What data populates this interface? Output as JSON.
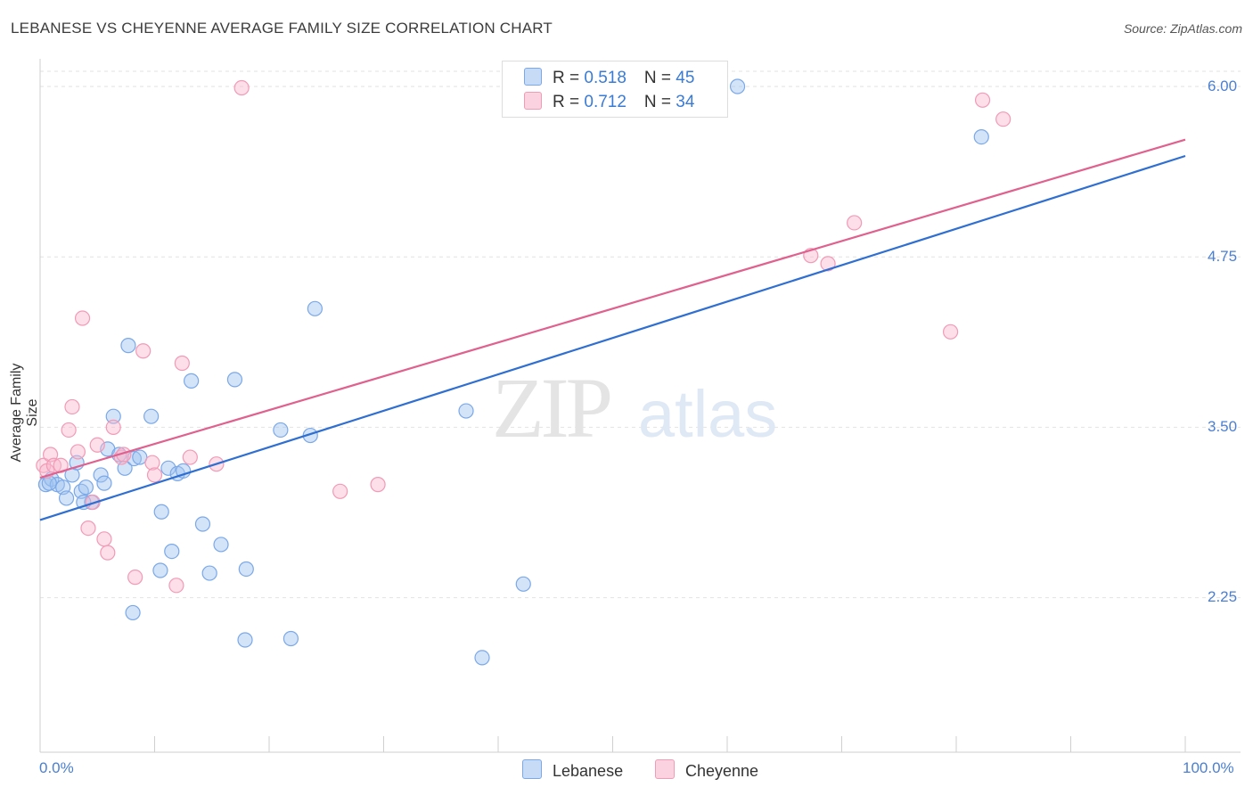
{
  "title": "LEBANESE VS CHEYENNE AVERAGE FAMILY SIZE CORRELATION CHART",
  "source": "Source: ZipAtlas.com",
  "watermark": {
    "zip": "ZIP",
    "atlas": "atlas"
  },
  "legend_top": [
    {
      "r_label": "R = ",
      "r_value": "0.518",
      "n_label": "N = ",
      "n_value": "45",
      "color": "#7aa8e8"
    },
    {
      "r_label": "R = ",
      "r_value": "0.712",
      "n_label": "N = ",
      "n_value": "34",
      "color": "#f29ab6"
    }
  ],
  "chart_data": {
    "type": "scatter",
    "title": "LEBANESE VS CHEYENNE AVERAGE FAMILY SIZE CORRELATION CHART",
    "xlabel": "",
    "ylabel": "Average Family Size",
    "x_tick_labels": [
      "0.0%",
      "100.0%"
    ],
    "y_tick_labels": [
      "2.25",
      "3.50",
      "4.75",
      "6.00"
    ],
    "xlim": [
      0,
      100
    ],
    "ylim": [
      1.25,
      6.15
    ],
    "y_ticks": [
      2.25,
      3.5,
      4.75,
      6.0
    ],
    "grid": true,
    "legend_position": "bottom-center",
    "series": [
      {
        "name": "Lebanese",
        "color": "#7aa8e8",
        "line_color": "#2f6fd1",
        "trend": {
          "x": [
            0,
            100
          ],
          "y": [
            2.82,
            5.49
          ]
        },
        "points": [
          [
            0.5,
            3.08
          ],
          [
            1.0,
            3.12
          ],
          [
            1.5,
            3.08
          ],
          [
            2.0,
            3.06
          ],
          [
            2.3,
            2.98
          ],
          [
            2.8,
            3.15
          ],
          [
            3.2,
            3.24
          ],
          [
            3.6,
            3.03
          ],
          [
            4.0,
            3.06
          ],
          [
            4.5,
            2.95
          ],
          [
            5.3,
            3.15
          ],
          [
            5.6,
            3.09
          ],
          [
            5.9,
            3.34
          ],
          [
            6.4,
            3.58
          ],
          [
            6.9,
            3.3
          ],
          [
            7.4,
            3.2
          ],
          [
            7.7,
            4.1
          ],
          [
            8.2,
            3.27
          ],
          [
            8.7,
            3.28
          ],
          [
            9.7,
            3.58
          ],
          [
            10.5,
            2.45
          ],
          [
            10.6,
            2.88
          ],
          [
            11.2,
            3.2
          ],
          [
            11.5,
            2.59
          ],
          [
            12.0,
            3.16
          ],
          [
            12.5,
            3.18
          ],
          [
            13.2,
            3.84
          ],
          [
            14.2,
            2.79
          ],
          [
            14.8,
            2.43
          ],
          [
            15.8,
            2.64
          ],
          [
            17.0,
            3.85
          ],
          [
            17.9,
            1.94
          ],
          [
            18.0,
            2.46
          ],
          [
            21.0,
            3.48
          ],
          [
            21.9,
            1.95
          ],
          [
            23.6,
            3.44
          ],
          [
            24.0,
            4.37
          ],
          [
            37.2,
            3.62
          ],
          [
            38.6,
            1.81
          ],
          [
            42.2,
            2.35
          ],
          [
            8.1,
            2.14
          ],
          [
            60.9,
            6.0
          ],
          [
            82.2,
            5.63
          ],
          [
            0.8,
            3.09
          ],
          [
            3.8,
            2.95
          ]
        ]
      },
      {
        "name": "Cheyenne",
        "color": "#f29ab6",
        "line_color": "#e0608e",
        "trend": {
          "x": [
            0,
            100
          ],
          "y": [
            3.13,
            5.61
          ]
        },
        "points": [
          [
            0.3,
            3.22
          ],
          [
            0.6,
            3.18
          ],
          [
            0.9,
            3.3
          ],
          [
            1.2,
            3.22
          ],
          [
            1.8,
            3.22
          ],
          [
            2.5,
            3.48
          ],
          [
            2.8,
            3.65
          ],
          [
            3.3,
            3.32
          ],
          [
            3.7,
            4.3
          ],
          [
            4.2,
            2.76
          ],
          [
            4.6,
            2.95
          ],
          [
            5.0,
            3.37
          ],
          [
            5.6,
            2.68
          ],
          [
            5.9,
            2.58
          ],
          [
            6.4,
            3.5
          ],
          [
            7.1,
            3.28
          ],
          [
            7.3,
            3.3
          ],
          [
            8.3,
            2.4
          ],
          [
            9.0,
            4.06
          ],
          [
            9.8,
            3.24
          ],
          [
            10.0,
            3.15
          ],
          [
            11.9,
            2.34
          ],
          [
            12.4,
            3.97
          ],
          [
            13.1,
            3.28
          ],
          [
            15.4,
            3.23
          ],
          [
            26.2,
            3.03
          ],
          [
            29.5,
            3.08
          ],
          [
            17.6,
            5.99
          ],
          [
            67.3,
            4.76
          ],
          [
            68.8,
            4.7
          ],
          [
            71.1,
            5.0
          ],
          [
            79.5,
            4.2
          ],
          [
            82.3,
            5.9
          ],
          [
            84.1,
            5.76
          ]
        ]
      }
    ]
  }
}
